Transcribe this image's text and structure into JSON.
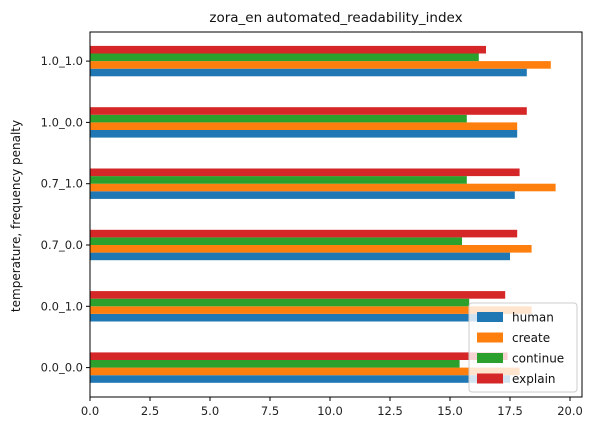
{
  "chart_data": {
    "type": "bar",
    "orientation": "horizontal",
    "title": "zora_en automated_readability_index",
    "xlabel": "",
    "ylabel": "temperature, frequency penalty",
    "categories": [
      "0.0_0.0",
      "0.0_1.0",
      "0.7_0.0",
      "0.7_1.0",
      "1.0_0.0",
      "1.0_1.0"
    ],
    "xlim": [
      0,
      20.5
    ],
    "xticks": [
      "0.0",
      "2.5",
      "5.0",
      "7.5",
      "10.0",
      "12.5",
      "15.0",
      "17.5",
      "20.0"
    ],
    "xtick_values": [
      0,
      2.5,
      5,
      7.5,
      10,
      12.5,
      15,
      17.5,
      20
    ],
    "grid": false,
    "legend_position": "bottom-right",
    "series": [
      {
        "name": "human",
        "color": "#1f77b4",
        "values": [
          17.5,
          17.2,
          17.5,
          17.7,
          17.8,
          18.2
        ]
      },
      {
        "name": "create",
        "color": "#ff7f0e",
        "values": [
          17.9,
          18.4,
          18.4,
          19.4,
          17.8,
          19.2
        ]
      },
      {
        "name": "continue",
        "color": "#2ca02c",
        "values": [
          15.4,
          15.8,
          15.5,
          15.7,
          15.7,
          16.2
        ]
      },
      {
        "name": "explain",
        "color": "#d62728",
        "values": [
          17.4,
          17.3,
          17.8,
          17.9,
          18.2,
          16.5
        ]
      }
    ]
  }
}
